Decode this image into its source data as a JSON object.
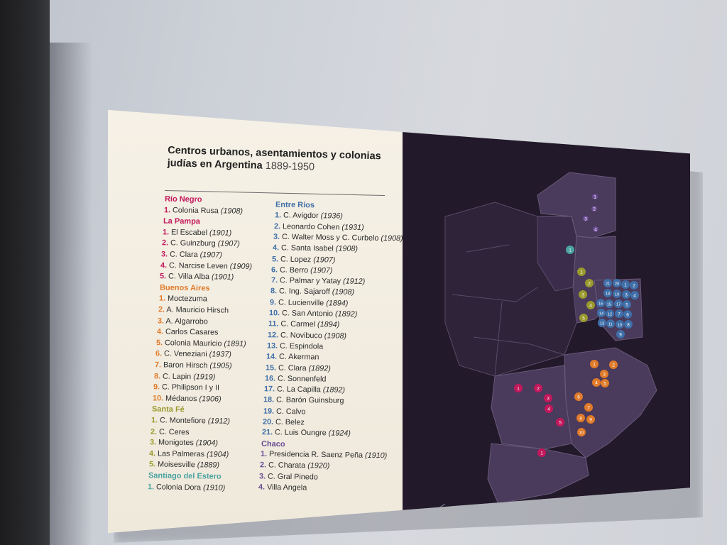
{
  "poster": {
    "title_line1": "Centros urbanos, asentamientos y colonias",
    "title_line2": "judías en Argentina",
    "title_years": "1889-1950"
  },
  "colors": {
    "rio_negro": "#c2185b",
    "la_pampa": "#c2185b",
    "buenos_aires": "#e07b2a",
    "santa_fe": "#9a9a2e",
    "santiago_del_estero": "#4aa3a0",
    "entre_rios": "#3f6fa8",
    "chaco": "#6a4c93",
    "map_background": "#22192a",
    "map_provinces": "#4a3a5c"
  },
  "groups": [
    {
      "key": "rio_negro",
      "name": "Río Negro",
      "items": [
        {
          "n": "1.",
          "t": "Colonia Rusa",
          "y": "(1908)"
        }
      ]
    },
    {
      "key": "la_pampa",
      "name": "La Pampa",
      "items": [
        {
          "n": "1.",
          "t": "El Escabel",
          "y": "(1901)"
        },
        {
          "n": "2.",
          "t": "C. Guinzburg",
          "y": "(1907)"
        },
        {
          "n": "3.",
          "t": "C. Clara",
          "y": "(1907)"
        },
        {
          "n": "4.",
          "t": "C. Narcise Leven",
          "y": "(1909)"
        },
        {
          "n": "5.",
          "t": "C. Villa Alba",
          "y": "(1901)"
        }
      ]
    },
    {
      "key": "buenos_aires",
      "name": "Buenos Aires",
      "items": [
        {
          "n": "1.",
          "t": "Moctezuma",
          "y": ""
        },
        {
          "n": "2.",
          "t": "A. Mauricio Hirsch",
          "y": ""
        },
        {
          "n": "3.",
          "t": "A. Algarrobo",
          "y": ""
        },
        {
          "n": "4.",
          "t": "Carlos Casares",
          "y": ""
        },
        {
          "n": "5.",
          "t": "Colonia Mauricio",
          "y": "(1891)"
        },
        {
          "n": "6.",
          "t": "C. Veneziani",
          "y": "(1937)"
        },
        {
          "n": "7.",
          "t": "Baron Hirsch",
          "y": "(1905)"
        },
        {
          "n": "8.",
          "t": "C. Lapin",
          "y": "(1919)"
        },
        {
          "n": "9.",
          "t": "C. Philipson I y II",
          "y": ""
        },
        {
          "n": "10.",
          "t": "Médanos",
          "y": "(1906)"
        }
      ]
    },
    {
      "key": "santa_fe",
      "name": "Santa Fé",
      "items": [
        {
          "n": "1.",
          "t": "C. Montefiore",
          "y": "(1912)"
        },
        {
          "n": "2.",
          "t": "C. Ceres",
          "y": ""
        },
        {
          "n": "3.",
          "t": "Monigotes",
          "y": "(1904)"
        },
        {
          "n": "4.",
          "t": "Las Palmeras",
          "y": "(1904)"
        },
        {
          "n": "5.",
          "t": "Moisesville",
          "y": "(1889)"
        }
      ]
    },
    {
      "key": "santiago_del_estero",
      "name": "Santiago del Estero",
      "items": [
        {
          "n": "1.",
          "t": "Colonia Dora",
          "y": "(1910)"
        }
      ]
    },
    {
      "key": "entre_rios",
      "name": "Entre Ríos",
      "items": [
        {
          "n": "1.",
          "t": "C. Avigdor",
          "y": "(1936)"
        },
        {
          "n": "2.",
          "t": "Leonardo Cohen",
          "y": "(1931)"
        },
        {
          "n": "3.",
          "t": "C. Walter Moss y C. Curbelo",
          "y": "(1908)"
        },
        {
          "n": "4.",
          "t": "C. Santa Isabel",
          "y": "(1908)"
        },
        {
          "n": "5.",
          "t": "C. Lopez",
          "y": "(1907)"
        },
        {
          "n": "6.",
          "t": "C. Berro",
          "y": "(1907)"
        },
        {
          "n": "7.",
          "t": "C. Palmar y Yatay",
          "y": "(1912)"
        },
        {
          "n": "8.",
          "t": "C. Ing. Sajaroff",
          "y": "(1908)"
        },
        {
          "n": "9.",
          "t": "C. Lucienville",
          "y": "(1894)"
        },
        {
          "n": "10.",
          "t": "C. San Antonio",
          "y": "(1892)"
        },
        {
          "n": "11.",
          "t": "C. Carmel",
          "y": "(1894)"
        },
        {
          "n": "12.",
          "t": "C. Novibuco",
          "y": "(1908)"
        },
        {
          "n": "13.",
          "t": "C. Espindola",
          "y": ""
        },
        {
          "n": "14.",
          "t": "C. Akerman",
          "y": ""
        },
        {
          "n": "15.",
          "t": "C. Clara",
          "y": "(1892)"
        },
        {
          "n": "16.",
          "t": "C. Sonnenfeld",
          "y": ""
        },
        {
          "n": "17.",
          "t": "C. La Capilla",
          "y": "(1892)"
        },
        {
          "n": "18.",
          "t": "C. Barón Guinsburg",
          "y": ""
        },
        {
          "n": "19.",
          "t": "C. Calvo",
          "y": ""
        },
        {
          "n": "20.",
          "t": "C. Belez",
          "y": ""
        },
        {
          "n": "21.",
          "t": "C. Luis Oungre",
          "y": "(1924)"
        }
      ]
    },
    {
      "key": "chaco",
      "name": "Chaco",
      "items": [
        {
          "n": "1.",
          "t": "Presidencia R. Saenz Peña",
          "y": "(1910)"
        },
        {
          "n": "2.",
          "t": "C. Charata",
          "y": "(1920)"
        },
        {
          "n": "3.",
          "t": "C. Gral Pinedo",
          "y": ""
        },
        {
          "n": "4.",
          "t": "Villa Angela",
          "y": ""
        }
      ]
    }
  ],
  "map_markers": {
    "chaco": [
      "1",
      "2",
      "3",
      "4"
    ],
    "santiago_del_estero": [
      "1"
    ],
    "santa_fe": [
      "1",
      "2",
      "3",
      "4",
      "5"
    ],
    "entre_rios": [
      "21",
      "20",
      "1",
      "2",
      "18",
      "19",
      "3",
      "4",
      "16",
      "15",
      "17",
      "5",
      "14",
      "12",
      "7",
      "6",
      "13",
      "11",
      "10",
      "8",
      "9"
    ],
    "buenos_aires": [
      "1",
      "2",
      "3",
      "4",
      "5",
      "6",
      "7",
      "8",
      "9",
      "10"
    ],
    "la_pampa": [
      "1",
      "2",
      "3",
      "4",
      "5"
    ],
    "rio_negro": [
      "1"
    ]
  }
}
